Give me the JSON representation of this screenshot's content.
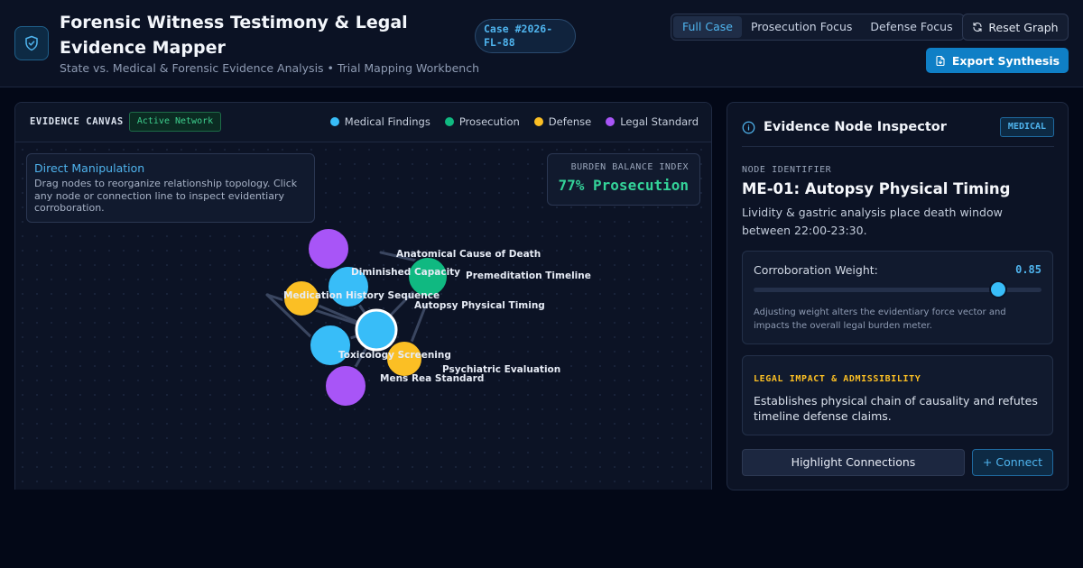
{
  "header": {
    "title": "Forensic Witness Testimony & Legal Evidence Mapper",
    "subtitle": "State vs. Medical & Forensic Evidence Analysis • Trial Mapping Workbench",
    "case_badge": "Case #2026-FL-88",
    "logo_icon": "shield-check-icon",
    "view_tabs": [
      "Full Case",
      "Prosecution Focus",
      "Defense Focus"
    ],
    "active_tab": "Full Case",
    "reset_label": "Reset Graph",
    "export_label": "Export Synthesis"
  },
  "canvas": {
    "title": "EVIDENCE CANVAS",
    "status_badge": "Active Network",
    "legend": [
      {
        "label": "Medical Findings",
        "color": "#38bdf8"
      },
      {
        "label": "Prosecution",
        "color": "#10b981"
      },
      {
        "label": "Defense",
        "color": "#fbbf24"
      },
      {
        "label": "Legal Standard",
        "color": "#a855f7"
      }
    ],
    "hint_title": "Direct Manipulation",
    "hint_text": "Drag nodes to reorganize relationship topology. Click any node or connection line to inspect evidentiary corroboration.",
    "burden_label": "BURDEN BALANCE INDEX",
    "burden_value": "77% Prosecution",
    "node_labels": [
      "Anatomical Cause of Death",
      "Diminished Capacity",
      "Premeditation Timeline",
      "Medication History Sequence",
      "Autopsy Physical Timing",
      "Toxicology Screening",
      "Psychiatric Evaluation",
      "Mens Rea Standard"
    ]
  },
  "inspector": {
    "title": "Evidence Node Inspector",
    "icon": "info-icon",
    "category_badge": "MEDICAL",
    "node_id_label": "NODE IDENTIFIER",
    "node_name": "ME-01: Autopsy Physical Timing",
    "node_description": "Lividity & gastric analysis place death window between 22:00-23:30.",
    "weight_label": "Corroboration Weight:",
    "weight_value": "0.85",
    "weight": 0.85,
    "weight_note": "Adjusting weight alters the evidentiary force vector and impacts the overall legal burden meter.",
    "impact_label": "LEGAL IMPACT & ADMISSIBILITY",
    "impact_text": "Establishes physical chain of causality and refutes timeline defense claims.",
    "highlight_label": "Highlight Connections",
    "connect_label": "+ Connect"
  },
  "colors": {
    "medical": "#38bdf8",
    "prosecution": "#10b981",
    "defense": "#fbbf24",
    "legal": "#a855f7",
    "accent": "#0f7fc6"
  }
}
